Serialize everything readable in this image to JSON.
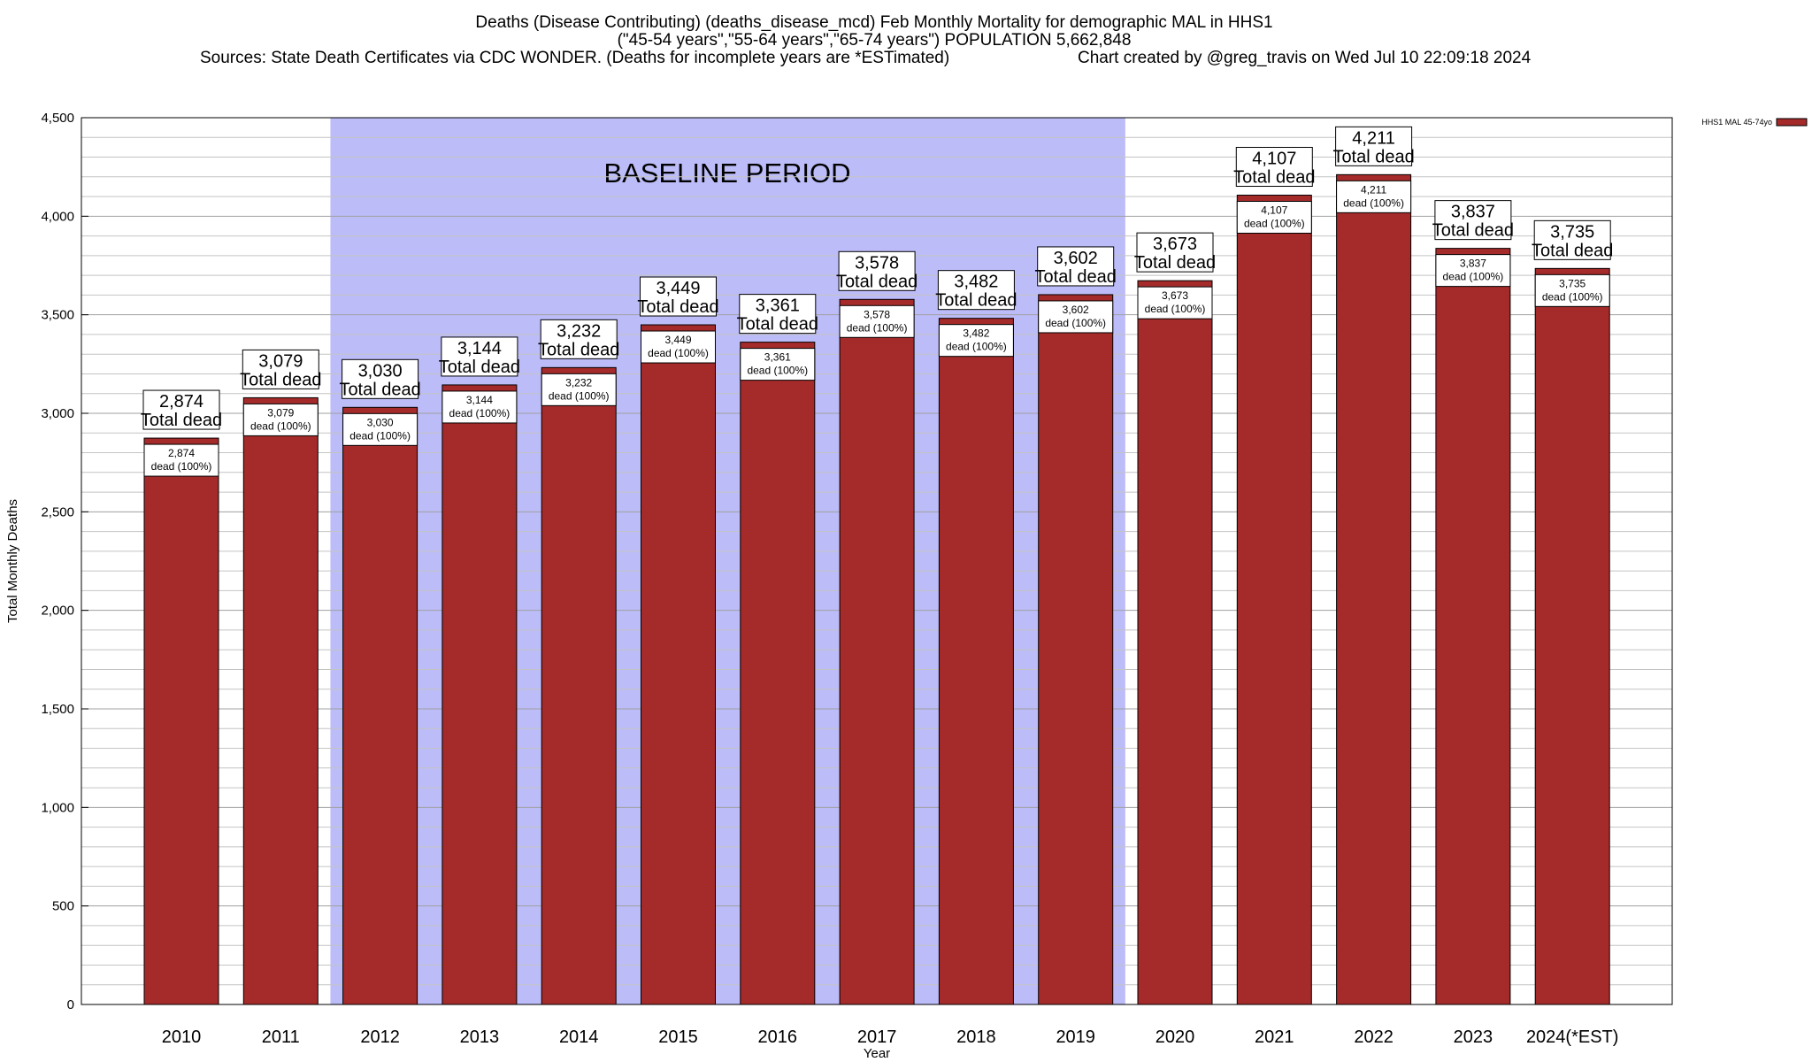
{
  "chart_data": {
    "type": "bar",
    "title": "Deaths (Disease Contributing) (deaths_disease_mcd) Feb Monthly Mortality for demographic MAL in HHS1",
    "subtitle": "(\"45-54 years\",\"55-64 years\",\"65-74 years\") POPULATION 5,662,848",
    "source": "Sources: State Death Certificates via CDC WONDER. (Deaths for incomplete years are *ESTimated)",
    "credit": "Chart created by @greg_travis on Wed Jul 10 22:09:18 2024",
    "xlabel": "Year",
    "ylabel": "Total Monthly Deaths",
    "ylim": [
      0,
      4500
    ],
    "yticks": [
      0,
      500,
      1000,
      1500,
      2000,
      2500,
      3000,
      3500,
      4000,
      4500
    ],
    "ytick_labels": [
      "0",
      "500",
      "1,000",
      "1,500",
      "2,000",
      "2,500",
      "3,000",
      "3,500",
      "4,000",
      "4,500"
    ],
    "minor_grid_step": 100,
    "grid": true,
    "legend_position": "top-right",
    "categories": [
      "2010",
      "2011",
      "2012",
      "2013",
      "2014",
      "2015",
      "2016",
      "2017",
      "2018",
      "2019",
      "2020",
      "2021",
      "2022",
      "2023",
      "2024(*EST)"
    ],
    "series": [
      {
        "name": "HHS1 MAL 45-74yo",
        "color": "#a52a2a",
        "values": [
          2874,
          3079,
          3030,
          3144,
          3232,
          3449,
          3361,
          3578,
          3482,
          3602,
          3673,
          4107,
          4211,
          3837,
          3735
        ]
      }
    ],
    "value_labels": [
      "2,874",
      "3,079",
      "3,030",
      "3,144",
      "3,232",
      "3,449",
      "3,361",
      "3,578",
      "3,482",
      "3,602",
      "3,673",
      "4,107",
      "4,211",
      "3,837",
      "3,735"
    ],
    "total_label": "Total dead",
    "inner_label": "dead (100%)",
    "baseline": {
      "label": "BASELINE PERIOD",
      "start_category": "2012",
      "end_category": "2019",
      "color": "#bcbcf8"
    }
  }
}
